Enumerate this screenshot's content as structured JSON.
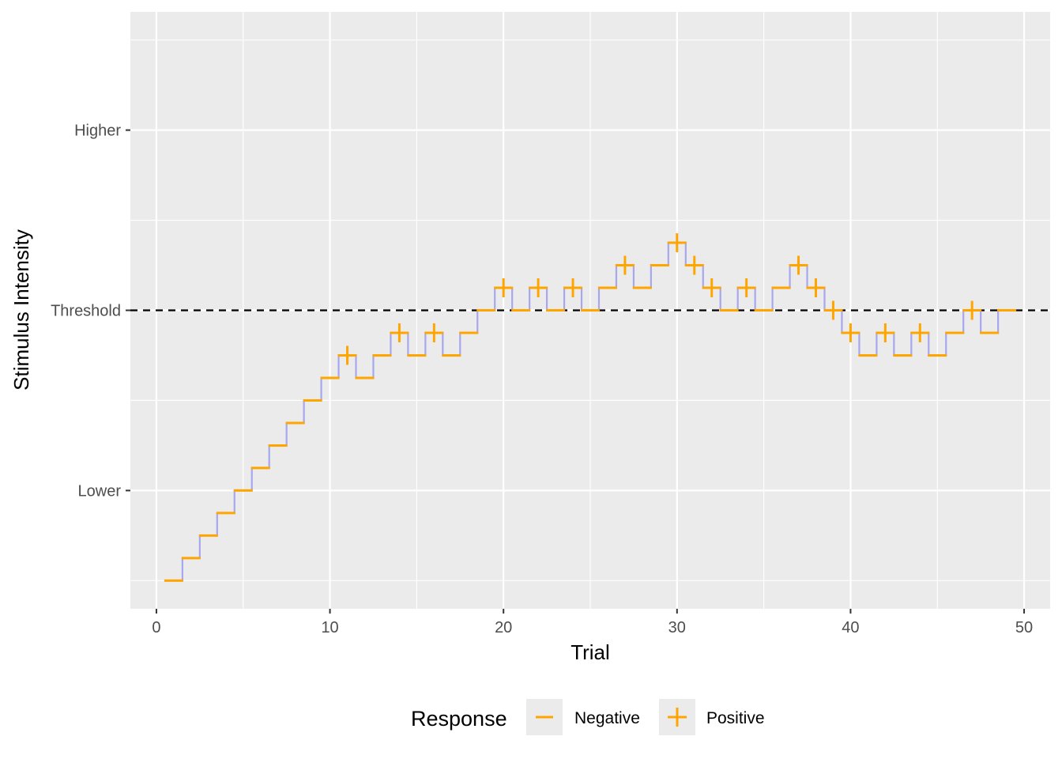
{
  "chart_data": {
    "type": "step",
    "xlabel": "Trial",
    "ylabel": "Stimulus Intensity",
    "xlim": [
      -1.5,
      51.5
    ],
    "ylim": [
      -13.25,
      13.25
    ],
    "x_ticks": [
      0,
      10,
      20,
      30,
      40,
      50
    ],
    "y_ticks": [
      {
        "value": -8,
        "label": "Lower"
      },
      {
        "value": 0,
        "label": "Threshold"
      },
      {
        "value": 8,
        "label": "Higher"
      }
    ],
    "threshold": 0,
    "grid": true,
    "colors": {
      "step_line": "#a7a7ee",
      "marker": "#ffa500",
      "threshold_line": "#000000",
      "panel": "#ebebeb",
      "grid": "#ffffff"
    },
    "series": [
      {
        "trial": [
          1,
          2,
          3,
          4,
          5,
          6,
          7,
          8,
          9,
          10,
          11,
          12,
          13,
          14,
          15,
          16,
          17,
          18,
          19,
          20,
          21,
          22,
          23,
          24,
          25,
          26,
          27,
          28,
          29,
          30,
          31,
          32,
          33,
          34,
          35,
          36,
          37,
          38,
          39,
          40,
          41,
          42,
          43,
          44,
          45,
          46,
          47,
          48,
          49
        ],
        "intensity": [
          -12,
          -11,
          -10,
          -9,
          -8,
          -7,
          -6,
          -5,
          -4,
          -3,
          -2,
          -3,
          -2,
          -1,
          -2,
          -1,
          -2,
          -1,
          0,
          1,
          0,
          1,
          0,
          1,
          0,
          1,
          2,
          1,
          2,
          3,
          2,
          1,
          0,
          1,
          0,
          1,
          2,
          1,
          0,
          -1,
          -2,
          -1,
          -2,
          -1,
          -2,
          -1,
          0,
          -1,
          0
        ],
        "response": [
          "Negative",
          "Negative",
          "Negative",
          "Negative",
          "Negative",
          "Negative",
          "Negative",
          "Negative",
          "Negative",
          "Negative",
          "Positive",
          "Negative",
          "Negative",
          "Positive",
          "Negative",
          "Positive",
          "Negative",
          "Negative",
          "Negative",
          "Positive",
          "Negative",
          "Positive",
          "Negative",
          "Positive",
          "Negative",
          "Negative",
          "Positive",
          "Negative",
          "Negative",
          "Positive",
          "Positive",
          "Positive",
          "Negative",
          "Positive",
          "Negative",
          "Negative",
          "Positive",
          "Positive",
          "Positive",
          "Positive",
          "Negative",
          "Positive",
          "Negative",
          "Positive",
          "Negative",
          "Negative",
          "Positive",
          "Negative",
          "Negative"
        ]
      }
    ],
    "legend": {
      "title": "Response",
      "placement": "bottom",
      "entries": [
        {
          "label": "Negative",
          "symbol": "minus"
        },
        {
          "label": "Positive",
          "symbol": "plus"
        }
      ]
    }
  }
}
